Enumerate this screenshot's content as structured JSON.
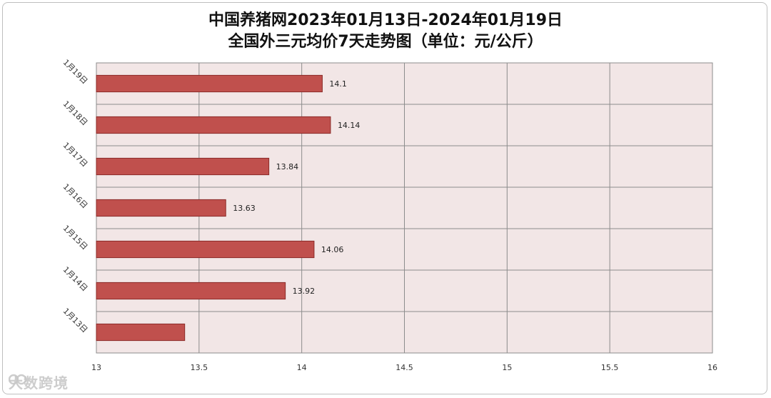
{
  "title_line1": "中国养猪网2023年01月13日-2024年01月19日",
  "title_line2": "全国外三元均价7天走势图（单位：元/公斤）",
  "watermark": "大数跨境",
  "chart_data": {
    "type": "bar",
    "orientation": "horizontal",
    "title": "中国养猪网2023年01月13日-2024年01月19日 全国外三元均价7天走势图（单位：元/公斤）",
    "categories": [
      "1月19日",
      "1月18日",
      "1月17日",
      "1月16日",
      "1月15日",
      "1月14日",
      "1月13日"
    ],
    "values": [
      14.1,
      14.14,
      13.84,
      13.63,
      14.06,
      13.92,
      13.43
    ],
    "data_labels": [
      "14.1",
      "14.14",
      "13.84",
      "13.63",
      "14.06",
      "13.92",
      ""
    ],
    "xlim": [
      13,
      16
    ],
    "xticks": [
      "13",
      "13.5",
      "14",
      "14.5",
      "15",
      "15.5",
      "16"
    ],
    "xlabel": "",
    "ylabel": "",
    "grid": true,
    "bar_color": "#c0504d",
    "bar_edge_color": "#8b2b28",
    "plot_background": "#f2e6e6"
  }
}
